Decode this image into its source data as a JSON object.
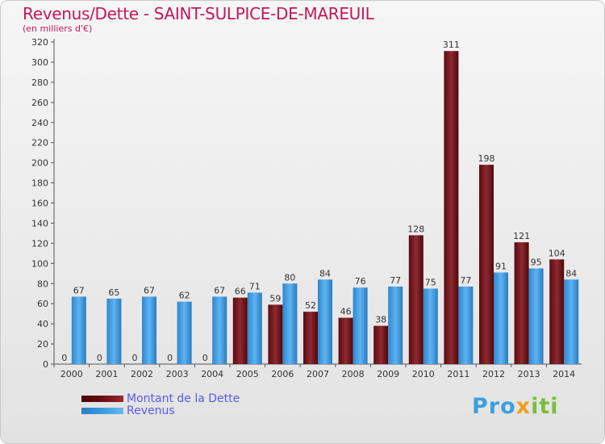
{
  "title": "Revenus/Dette - SAINT-SULPICE-DE-MAREUIL",
  "subtitle": "(en milliers d'€)",
  "logo": {
    "p1": "Pro",
    "p2": "x",
    "p3": "iti"
  },
  "colors": {
    "debt": "#7a1a1f",
    "revenue": "#3b9be0",
    "text": "#c2185b",
    "legend_text": "#5a5ae6"
  },
  "legend": [
    {
      "label": "Montant de la Dette",
      "color": "#6a0d12"
    },
    {
      "label": "Revenus",
      "color": "#3b9be0"
    }
  ],
  "chart_data": {
    "type": "bar",
    "categories": [
      "2000",
      "2001",
      "2002",
      "2003",
      "2004",
      "2005",
      "2006",
      "2007",
      "2008",
      "2009",
      "2010",
      "2011",
      "2012",
      "2013",
      "2014"
    ],
    "series": [
      {
        "name": "Montant de la Dette",
        "values": [
          0,
          0,
          0,
          0,
          0,
          66,
          59,
          52,
          46,
          38,
          128,
          311,
          198,
          121,
          104
        ]
      },
      {
        "name": "Revenus",
        "values": [
          67,
          65,
          67,
          62,
          67,
          71,
          80,
          84,
          76,
          77,
          75,
          77,
          91,
          95,
          84
        ]
      }
    ],
    "ylim": [
      0,
      320
    ],
    "yticks": [
      0,
      20,
      40,
      60,
      80,
      100,
      120,
      140,
      160,
      180,
      200,
      220,
      240,
      260,
      280,
      300,
      320
    ],
    "grid": false,
    "legend_position": "bottom-left"
  }
}
